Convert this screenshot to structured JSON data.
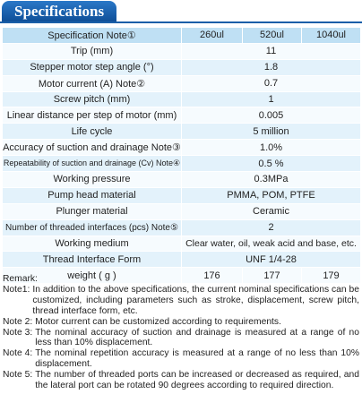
{
  "header": {
    "title": "Specifications"
  },
  "table": {
    "columns": [
      "Specification Note①",
      "260ul",
      "520ul",
      "1040ul"
    ],
    "rows": [
      {
        "label": "Trip (mm)",
        "values": [
          "11"
        ]
      },
      {
        "label": "Stepper motor step angle (°)",
        "values": [
          "1.8"
        ]
      },
      {
        "label": "Motor current (A) Note②",
        "values": [
          "0.7"
        ]
      },
      {
        "label": "Screw pitch (mm)",
        "values": [
          "1"
        ]
      },
      {
        "label": "Linear distance per step of motor (mm)",
        "values": [
          "0.005"
        ]
      },
      {
        "label": "Life cycle",
        "values": [
          "5 million"
        ]
      },
      {
        "label": "Accuracy of suction and drainage Note③",
        "values": [
          "1.0%"
        ]
      },
      {
        "label": "Repeatability of suction and drainage (Cv) Note④",
        "values": [
          "0.5 %"
        ]
      },
      {
        "label": "Working pressure",
        "values": [
          "0.3MPa"
        ]
      },
      {
        "label": "Pump head material",
        "values": [
          "PMMA,  POM,  PTFE"
        ]
      },
      {
        "label": "Plunger material",
        "values": [
          "Ceramic"
        ]
      },
      {
        "label": "Number of threaded interfaces (pcs) Note⑤",
        "values": [
          "2"
        ]
      },
      {
        "label": "Working medium",
        "values": [
          "Clear water, oil, weak acid and base, etc."
        ]
      },
      {
        "label": "Thread Interface Form",
        "values": [
          "UNF 1/4-28"
        ]
      },
      {
        "label": "weight ( g )",
        "values": [
          "176",
          "177",
          "179"
        ]
      }
    ]
  },
  "remarks": {
    "title": "Remark:",
    "notes": [
      {
        "label": "Note1:",
        "text": "In addition to the above specifications, the current nominal specifications can be customized, including parameters such as stroke, displacement, screw pitch, thread interface form, etc."
      },
      {
        "label": "Note 2:",
        "text": "Motor current can be customized according to requirements."
      },
      {
        "label": "Note 3:",
        "text": "The nominal accuracy of suction and drainage is measured at a range of no less than 10% displacement."
      },
      {
        "label": "Note 4:",
        "text": "The nominal repetition accuracy is measured at a range of no less than 10% displacement."
      },
      {
        "label": "Note 5:",
        "text": "The number of threaded ports can be increased or decreased as required, and the lateral port can be rotated 90 degrees according to required direction."
      }
    ]
  }
}
